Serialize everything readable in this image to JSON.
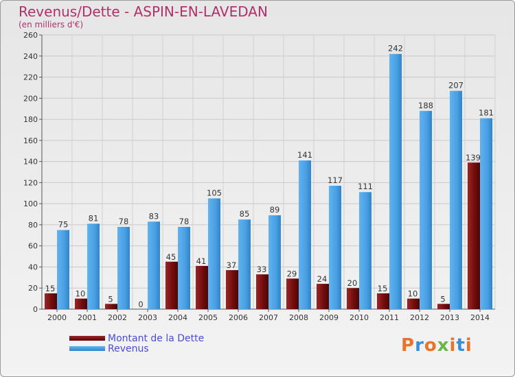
{
  "header": {
    "title": "Revenus/Dette - ASPIN-EN-LAVEDAN",
    "subtitle": "(en milliers d'€)"
  },
  "legend": {
    "debt_label": "Montant de la Dette",
    "revenue_label": "Revenus"
  },
  "logo": {
    "text": "Proxiti"
  },
  "colors": {
    "debt": "#7a1010",
    "revenue": "#4ea3e6",
    "title": "#b0306b",
    "legend_text": "#4a4adb"
  },
  "chart_data": {
    "type": "bar",
    "categories": [
      "2000",
      "2001",
      "2002",
      "2003",
      "2004",
      "2005",
      "2006",
      "2007",
      "2008",
      "2009",
      "2010",
      "2011",
      "2012",
      "2013",
      "2014"
    ],
    "series": [
      {
        "name": "Montant de la Dette",
        "values": [
          15,
          10,
          5,
          0,
          45,
          41,
          37,
          33,
          29,
          24,
          20,
          15,
          10,
          5,
          139
        ]
      },
      {
        "name": "Revenus",
        "values": [
          75,
          81,
          78,
          83,
          78,
          105,
          85,
          89,
          141,
          117,
          111,
          242,
          188,
          207,
          181
        ]
      }
    ],
    "title": "Revenus/Dette - ASPIN-EN-LAVEDAN",
    "subtitle": "(en milliers d'€)",
    "ylim": [
      0,
      260
    ],
    "yticks": [
      0,
      20,
      40,
      60,
      80,
      100,
      120,
      140,
      160,
      180,
      200,
      220,
      240,
      260
    ],
    "grid": true,
    "legend_position": "bottom-left"
  }
}
